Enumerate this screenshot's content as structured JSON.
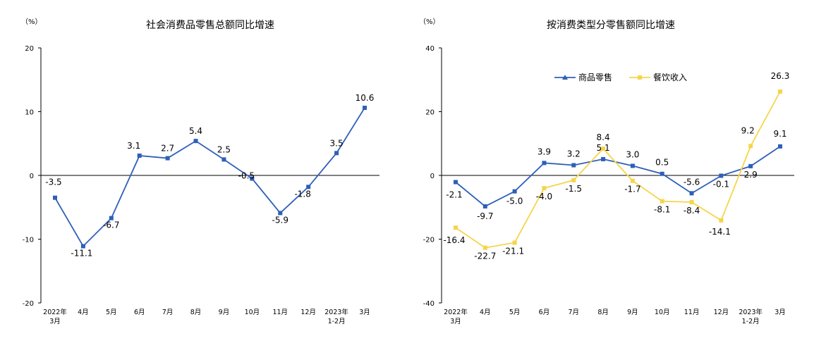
{
  "chart_data": [
    {
      "type": "line",
      "title": "社会消费品零售总额同比增速",
      "unit": "（%）",
      "ylim": [
        -20,
        20
      ],
      "yticks": [
        "20",
        "10",
        "0",
        "-10",
        "-20"
      ],
      "ytick_values": [
        20,
        10,
        0,
        -10,
        -20
      ],
      "categories": [
        [
          "2022年",
          "3月"
        ],
        [
          "4月"
        ],
        [
          "5月"
        ],
        [
          "6月"
        ],
        [
          "7月"
        ],
        [
          "8月"
        ],
        [
          "9月"
        ],
        [
          "10月"
        ],
        [
          "11月"
        ],
        [
          "12月"
        ],
        [
          "2023年",
          "1-2月"
        ],
        [
          "3月"
        ]
      ],
      "series": [
        {
          "name": "社会消费品零售总额",
          "color": "#2e5fb8",
          "values": [
            -3.5,
            -11.1,
            -6.7,
            3.1,
            2.7,
            5.4,
            2.5,
            -0.5,
            -5.9,
            -1.8,
            3.5,
            10.6
          ],
          "labels": [
            "-3.5",
            "-11.1",
            "-6.7",
            "3.1",
            "2.7",
            "5.4",
            "2.5",
            "-0.5",
            "-5.9",
            "-1.8",
            "3.5",
            "10.6"
          ]
        }
      ]
    },
    {
      "type": "line",
      "title": "按消费类型分零售额同比增速",
      "unit": "（%）",
      "ylim": [
        -40,
        40
      ],
      "yticks": [
        "40",
        "20",
        "0",
        "-20",
        "-40"
      ],
      "ytick_values": [
        40,
        20,
        0,
        -20,
        -40
      ],
      "categories": [
        [
          "2022年",
          "3月"
        ],
        [
          "4月"
        ],
        [
          "5月"
        ],
        [
          "6月"
        ],
        [
          "7月"
        ],
        [
          "8月"
        ],
        [
          "9月"
        ],
        [
          "10月"
        ],
        [
          "11月"
        ],
        [
          "12月"
        ],
        [
          "2023年",
          "1-2月"
        ],
        [
          "3月"
        ]
      ],
      "legend": [
        "商品零售",
        "餐饮收入"
      ],
      "series": [
        {
          "name": "商品零售",
          "color": "#2e5fb8",
          "values": [
            -2.1,
            -9.7,
            -5.0,
            3.9,
            3.2,
            5.1,
            3.0,
            0.5,
            -5.6,
            -0.1,
            2.9,
            9.1
          ],
          "labels": [
            "-2.1",
            "-9.7",
            "-5.0",
            "3.9",
            "3.2",
            "5.1",
            "3.0",
            "0.5",
            "-5.6",
            "-0.1",
            "2.9",
            "9.1"
          ]
        },
        {
          "name": "餐饮收入",
          "color": "#f5d54a",
          "values": [
            -16.4,
            -22.7,
            -21.1,
            -4.0,
            -1.5,
            8.4,
            -1.7,
            -8.1,
            -8.4,
            -14.1,
            9.2,
            26.3
          ],
          "labels": [
            "-16.4",
            "-22.7",
            "-21.1",
            "-4.0",
            "-1.5",
            "8.4",
            "-1.7",
            "-8.1",
            "-8.4",
            "-14.1",
            "9.2",
            "26.3"
          ]
        }
      ]
    }
  ]
}
